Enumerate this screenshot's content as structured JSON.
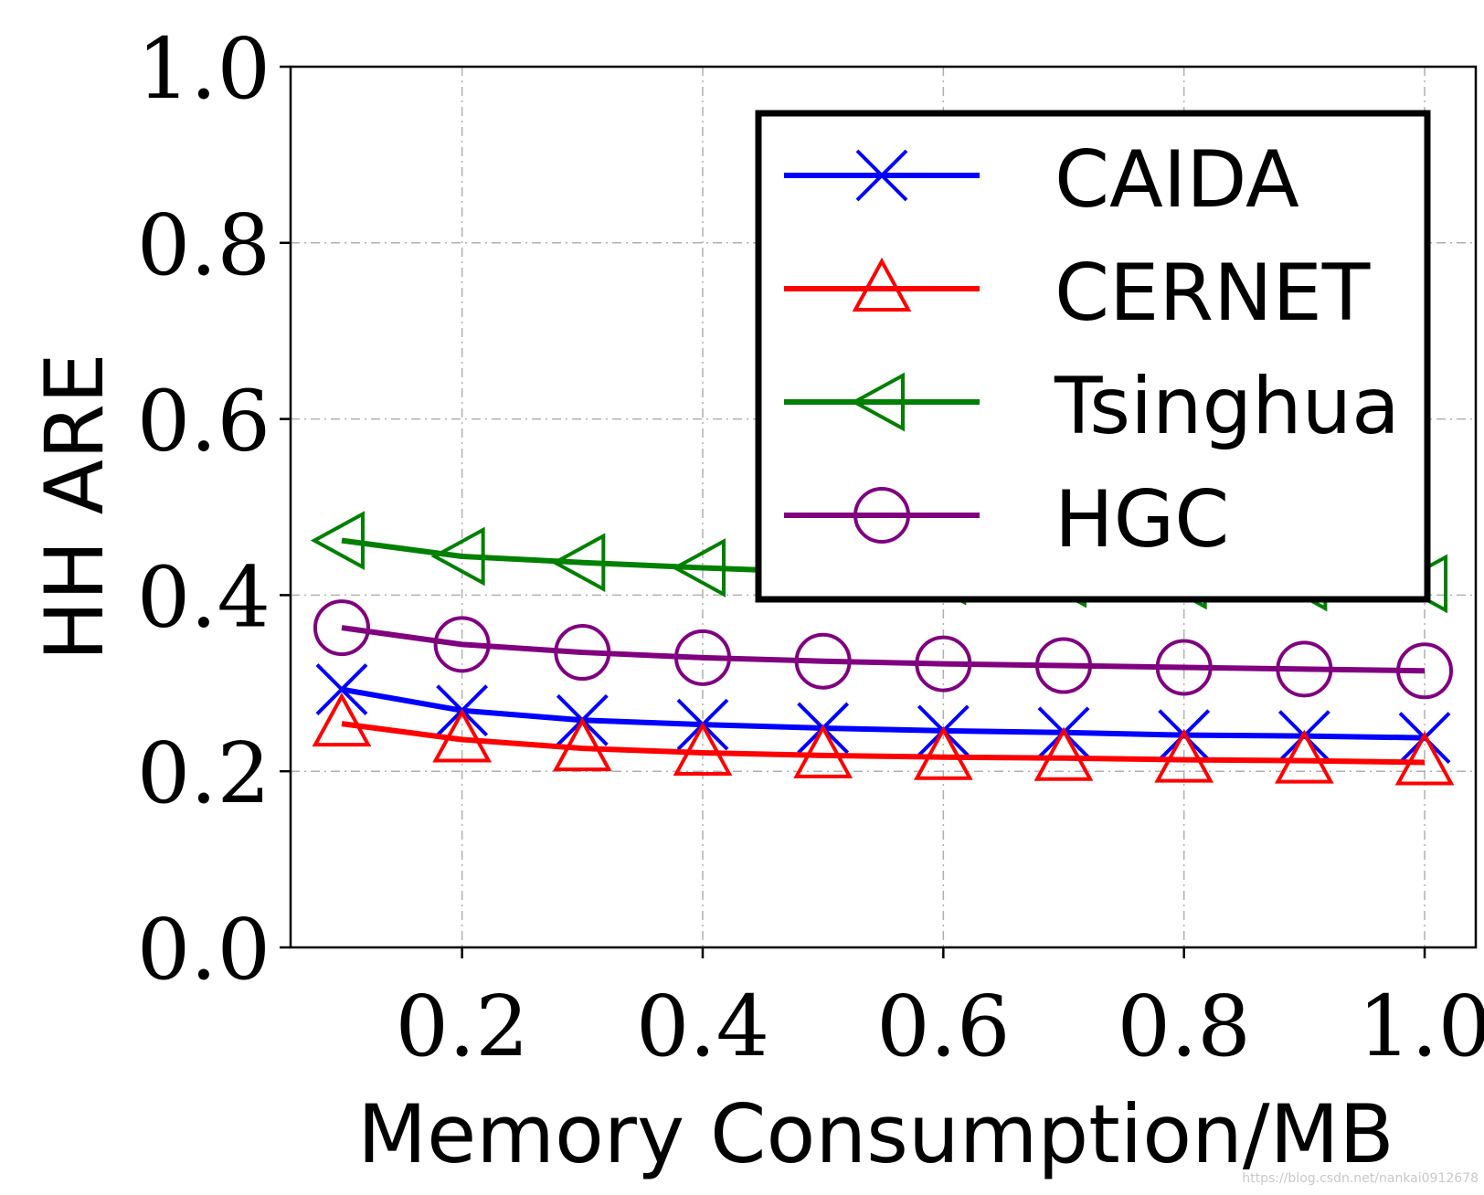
{
  "chart_data": {
    "type": "line",
    "title": "",
    "xlabel": "Memory Consumption/MB",
    "ylabel": "HH ARE",
    "xlim": [
      0.0575,
      1.0425
    ],
    "ylim": [
      0.0,
      1.0
    ],
    "xticks": [
      0.2,
      0.4,
      0.6,
      0.8,
      1.0
    ],
    "xtick_labels": [
      "0.2",
      "0.4",
      "0.6",
      "0.8",
      "1.0"
    ],
    "yticks": [
      0.0,
      0.2,
      0.4,
      0.6,
      0.8,
      1.0
    ],
    "ytick_labels": [
      "0.0",
      "0.2",
      "0.4",
      "0.6",
      "0.8",
      "1.0"
    ],
    "grid": true,
    "legend_position": "top-right",
    "x": [
      0.1,
      0.2,
      0.3,
      0.4,
      0.5,
      0.6,
      0.7,
      0.8,
      0.9,
      1.0
    ],
    "series": [
      {
        "name": "CAIDA",
        "color": "#0000ff",
        "marker": "x",
        "values": [
          0.293,
          0.269,
          0.258,
          0.253,
          0.249,
          0.246,
          0.244,
          0.241,
          0.24,
          0.238
        ]
      },
      {
        "name": "CERNET",
        "color": "#ff0000",
        "marker": "triangle-up",
        "values": [
          0.254,
          0.236,
          0.226,
          0.221,
          0.218,
          0.216,
          0.215,
          0.213,
          0.212,
          0.21
        ]
      },
      {
        "name": "Tsinghua",
        "color": "#008000",
        "marker": "triangle-left",
        "values": [
          0.462,
          0.444,
          0.437,
          0.431,
          0.426,
          0.422,
          0.419,
          0.417,
          0.415,
          0.413
        ]
      },
      {
        "name": "HGC",
        "color": "#800080",
        "marker": "circle",
        "values": [
          0.363,
          0.344,
          0.335,
          0.329,
          0.325,
          0.322,
          0.32,
          0.318,
          0.316,
          0.314
        ]
      }
    ]
  },
  "watermark": "https://blog.csdn.net/nankai0912678"
}
